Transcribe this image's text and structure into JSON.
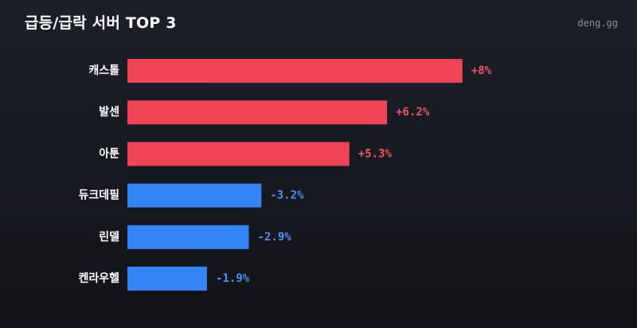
{
  "header": {
    "title": "급등/급락 서버 TOP 3",
    "site": "deng.gg"
  },
  "colors": {
    "up": "#ef4455",
    "down": "#3384f5",
    "up_text": "#f25467",
    "down_text": "#4a92f7",
    "label": "#ffffff"
  },
  "chart_data": {
    "type": "bar",
    "orientation": "horizontal",
    "title": "급등/급락 서버 TOP 3",
    "categories": [
      "캐스톨",
      "발센",
      "아툰",
      "듀크데필",
      "린델",
      "켄라우헬"
    ],
    "values": [
      8,
      6.2,
      5.3,
      -3.2,
      -2.9,
      -1.9
    ],
    "value_labels": [
      "+8%",
      "+6.2%",
      "+5.3%",
      "-3.2%",
      "-2.9%",
      "-1.9%"
    ],
    "bar_length": "absolute value",
    "unit": "%",
    "grid": false,
    "legend": "none"
  }
}
